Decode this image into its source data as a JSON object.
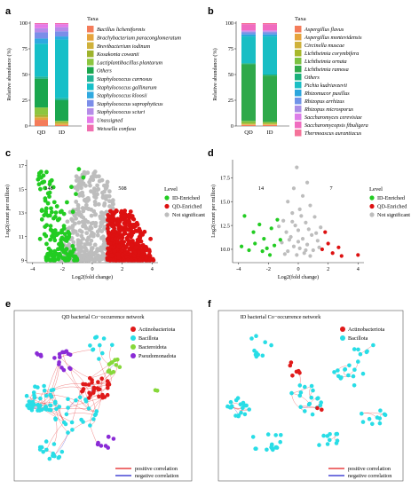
{
  "panels": {
    "a": "a",
    "b": "b",
    "c": "c",
    "d": "d",
    "e": "e",
    "f": "f"
  },
  "colors": {
    "id_enriched": "#22cc22",
    "qd_enriched": "#dd1111",
    "not_significant": "#bdbdbd",
    "positive_correlation": "#e31a1c",
    "negative_correlation": "#2222cc"
  },
  "chart_data": [
    {
      "panel": "a",
      "type": "bar",
      "stacked": true,
      "ylabel": "Relative abundance (%)",
      "ylim": [
        0,
        100
      ],
      "y_ticks": [
        0,
        25,
        50,
        75,
        100
      ],
      "categories": [
        "QD",
        "ID"
      ],
      "legend_title": "Taxa",
      "legend_position": "right",
      "series": [
        {
          "name": "Bacillus licheniformis",
          "color": "#f47c5a",
          "values": [
            6,
            1
          ]
        },
        {
          "name": "Brachybacterium paraconglomeratum",
          "color": "#e6a43c",
          "values": [
            2,
            1
          ]
        },
        {
          "name": "Brevibacterium iodinum",
          "color": "#cfb13a",
          "values": [
            1,
            1
          ]
        },
        {
          "name": "Kosakonia cowanii",
          "color": "#9eb32c",
          "values": [
            2,
            1
          ]
        },
        {
          "name": "Lactiplantibacillus plantarum",
          "color": "#8cc63f",
          "values": [
            7,
            1
          ]
        },
        {
          "name": "Others",
          "color": "#1aa64e",
          "values": [
            28,
            20
          ]
        },
        {
          "name": "Staphylococcus carnosus",
          "color": "#23b596",
          "values": [
            2,
            2
          ]
        },
        {
          "name": "Staphylococcus gallinarum",
          "color": "#16bfc8",
          "values": [
            32,
            57
          ]
        },
        {
          "name": "Staphylococcus kloosii",
          "color": "#2fa9e0",
          "values": [
            5,
            3
          ]
        },
        {
          "name": "Staphylococcus saprophyticus",
          "color": "#7b8ee9",
          "values": [
            6,
            5
          ]
        },
        {
          "name": "Staphylococcus sciuri",
          "color": "#b58ce8",
          "values": [
            4,
            4
          ]
        },
        {
          "name": "Unassigned",
          "color": "#e57ae8",
          "values": [
            4,
            3
          ]
        },
        {
          "name": "Weissella confusa",
          "color": "#f06fb0",
          "values": [
            1,
            1
          ]
        }
      ]
    },
    {
      "panel": "b",
      "type": "bar",
      "stacked": true,
      "ylabel": "Relative abundance (%)",
      "ylim": [
        0,
        100
      ],
      "y_ticks": [
        0,
        25,
        50,
        75,
        100
      ],
      "categories": [
        "QD",
        "ID"
      ],
      "legend_title": "Taxa",
      "legend_position": "right",
      "series": [
        {
          "name": "Aspergillus flavus",
          "color": "#f47c5a",
          "values": [
            1,
            1
          ]
        },
        {
          "name": "Aspergillus montevidensis",
          "color": "#e6a43c",
          "values": [
            0.5,
            0.5
          ]
        },
        {
          "name": "Circinella muscae",
          "color": "#cfb13a",
          "values": [
            0.5,
            0.5
          ]
        },
        {
          "name": "Lichtheimia corymbifera",
          "color": "#a8b82a",
          "values": [
            1,
            1
          ]
        },
        {
          "name": "Lichtheimia ornata",
          "color": "#7cc242",
          "values": [
            2,
            1
          ]
        },
        {
          "name": "Lichtheimia ramosa",
          "color": "#2fa94a",
          "values": [
            55,
            45
          ]
        },
        {
          "name": "Others",
          "color": "#1ab07a",
          "values": [
            1,
            1
          ]
        },
        {
          "name": "Pichia kudriavzevii",
          "color": "#19bec4",
          "values": [
            26,
            37
          ]
        },
        {
          "name": "Rhizomucor pusillus",
          "color": "#2ba6dd",
          "values": [
            2,
            2
          ]
        },
        {
          "name": "Rhizopus arrhizus",
          "color": "#6f93e8",
          "values": [
            2,
            2
          ]
        },
        {
          "name": "Rhizopus microsporus",
          "color": "#a98de6",
          "values": [
            1,
            1
          ]
        },
        {
          "name": "Saccharomyces cerevisiae",
          "color": "#dd7de8",
          "values": [
            1,
            1
          ]
        },
        {
          "name": "Saccharomycopsis fibuligera",
          "color": "#f06cc0",
          "values": [
            6,
            6
          ]
        },
        {
          "name": "Thermoascus aurantiacus",
          "color": "#f5739a",
          "values": [
            1,
            1
          ]
        }
      ]
    },
    {
      "panel": "c",
      "type": "scatter",
      "xlabel": "Log2(fold change)",
      "ylabel": "Log2(count per million)",
      "xlim": [
        -4.4,
        4.4
      ],
      "ylim": [
        8.8,
        17.5
      ],
      "x_ticks": [
        -4,
        -2,
        0,
        2,
        4
      ],
      "y_ticks": [
        9,
        11,
        13,
        15,
        17
      ],
      "legend_title": "Level",
      "legend_position": "right",
      "legend": [
        "ID-Enriched",
        "QD-Enriched",
        "Not significant"
      ],
      "counts": {
        "id_enriched": "148",
        "qd_enriched": "508"
      },
      "series": [
        {
          "name": "ID-Enriched",
          "color": "#22cc22",
          "n": 148,
          "x_range": [
            -4,
            -1
          ],
          "y_range": [
            9,
            16.6
          ],
          "highlight": [
            [
              -0.9,
              16.7
            ],
            [
              -0.6,
              16.0
            ],
            [
              -1.4,
              15.2
            ],
            [
              -1.1,
              14.6
            ],
            [
              -1.7,
              13.9
            ],
            [
              -1.3,
              13.1
            ],
            [
              -2.3,
              12.4
            ],
            [
              -1.9,
              11.9
            ],
            [
              -2.7,
              11.5
            ],
            [
              -3.2,
              11.2
            ],
            [
              -3.5,
              10.8
            ]
          ]
        },
        {
          "name": "QD-Enriched",
          "color": "#dd1111",
          "n": 508,
          "x_range": [
            1,
            4.1
          ],
          "y_range": [
            9,
            13.2
          ],
          "highlight": [
            [
              1.6,
              13.2
            ],
            [
              2.0,
              12.8
            ],
            [
              2.4,
              12.3
            ],
            [
              2.9,
              11.9
            ],
            [
              3.5,
              11.4
            ],
            [
              3.9,
              10.8
            ],
            [
              1.3,
              12.6
            ]
          ]
        },
        {
          "name": "Not significant",
          "color": "#bdbdbd",
          "n": 900,
          "x_range": [
            -2.2,
            2.2
          ],
          "y_range": [
            9,
            16.5
          ],
          "highlight": [
            [
              0.1,
              16.3
            ],
            [
              -0.2,
              15.6
            ],
            [
              0.4,
              15.0
            ],
            [
              0.9,
              14.4
            ],
            [
              -0.5,
              14.1
            ],
            [
              0.2,
              13.7
            ]
          ]
        }
      ]
    },
    {
      "panel": "d",
      "type": "scatter",
      "xlabel": "Log2(fold change)",
      "ylabel": "Log2(count per million)",
      "xlim": [
        -4.4,
        4.4
      ],
      "ylim": [
        8.6,
        19.4
      ],
      "x_ticks": [
        -4,
        -2,
        0,
        2,
        4
      ],
      "y_ticks": [
        10.0,
        12.5,
        15.0,
        17.5
      ],
      "legend_title": "Level",
      "legend_position": "right",
      "legend": [
        "ID-Enriched",
        "QD-Enriched",
        "Not significant"
      ],
      "counts": {
        "id_enriched": "14",
        "qd_enriched": "7"
      },
      "series": [
        {
          "name": "ID-Enriched",
          "color": "#22cc22",
          "points": [
            [
              -3.6,
              13.5
            ],
            [
              -3.0,
              11.8
            ],
            [
              -2.6,
              12.6
            ],
            [
              -2.3,
              11.1
            ],
            [
              -2.9,
              10.6
            ],
            [
              -2.4,
              9.8
            ],
            [
              -1.8,
              12.2
            ],
            [
              -1.6,
              10.4
            ],
            [
              -1.9,
              9.4
            ],
            [
              -1.2,
              11.0
            ],
            [
              -3.3,
              9.9
            ],
            [
              -1.4,
              13.1
            ],
            [
              -2.1,
              10.1
            ],
            [
              -3.8,
              10.3
            ]
          ]
        },
        {
          "name": "QD-Enriched",
          "color": "#dd1111",
          "points": [
            [
              1.8,
              11.8
            ],
            [
              2.3,
              9.6
            ],
            [
              2.9,
              9.3
            ],
            [
              4.0,
              9.4
            ],
            [
              1.6,
              10.0
            ],
            [
              2.0,
              10.6
            ],
            [
              2.7,
              10.2
            ]
          ]
        },
        {
          "name": "Not significant",
          "color": "#bdbdbd",
          "points": [
            [
              -0.1,
              18.6
            ],
            [
              0.6,
              17.0
            ],
            [
              -0.3,
              16.4
            ],
            [
              0.3,
              15.6
            ],
            [
              -0.7,
              15.0
            ],
            [
              0.8,
              14.6
            ],
            [
              0.1,
              14.2
            ],
            [
              -0.4,
              13.8
            ],
            [
              1.1,
              13.4
            ],
            [
              -1.0,
              13.0
            ],
            [
              0.5,
              12.8
            ],
            [
              -0.2,
              12.5
            ],
            [
              1.5,
              12.3
            ],
            [
              0.0,
              12.0
            ],
            [
              -0.8,
              11.8
            ],
            [
              0.9,
              11.5
            ],
            [
              -0.5,
              11.3
            ],
            [
              0.3,
              11.1
            ],
            [
              1.3,
              10.9
            ],
            [
              -1.1,
              10.7
            ],
            [
              0.6,
              10.5
            ],
            [
              -0.3,
              10.3
            ],
            [
              0.1,
              10.1
            ],
            [
              1.0,
              9.9
            ],
            [
              -0.7,
              9.8
            ],
            [
              0.4,
              9.6
            ],
            [
              -0.1,
              9.4
            ],
            [
              0.8,
              9.3
            ],
            [
              -0.9,
              9.5
            ],
            [
              1.4,
              10.2
            ],
            [
              -0.4,
              12.9
            ],
            [
              0.2,
              13.5
            ],
            [
              0.7,
              12.1
            ],
            [
              -0.6,
              11.0
            ],
            [
              1.2,
              11.7
            ],
            [
              0.0,
              10.8
            ],
            [
              -1.3,
              12.4
            ],
            [
              0.5,
              9.9
            ]
          ]
        }
      ]
    }
  ],
  "networks": {
    "e": {
      "title": "QD bacterial Co−occurrence network",
      "legend": [
        {
          "name": "Actinobacteriota",
          "color": "#e01a1a"
        },
        {
          "name": "Bacillota",
          "color": "#28dde6"
        },
        {
          "name": "Bacteroidota",
          "color": "#86d83a"
        },
        {
          "name": "Pseudomonadota",
          "color": "#8a2bd6"
        }
      ],
      "edge_legend": [
        "positive correlation",
        "negative correlation"
      ]
    },
    "f": {
      "title": "ID bacterial Co−occurrence network",
      "legend": [
        {
          "name": "Actinobacteriota",
          "color": "#e01a1a"
        },
        {
          "name": "Bacillota",
          "color": "#28dde6"
        }
      ],
      "edge_legend": [
        "positive correlation",
        "negative correlation"
      ]
    }
  }
}
